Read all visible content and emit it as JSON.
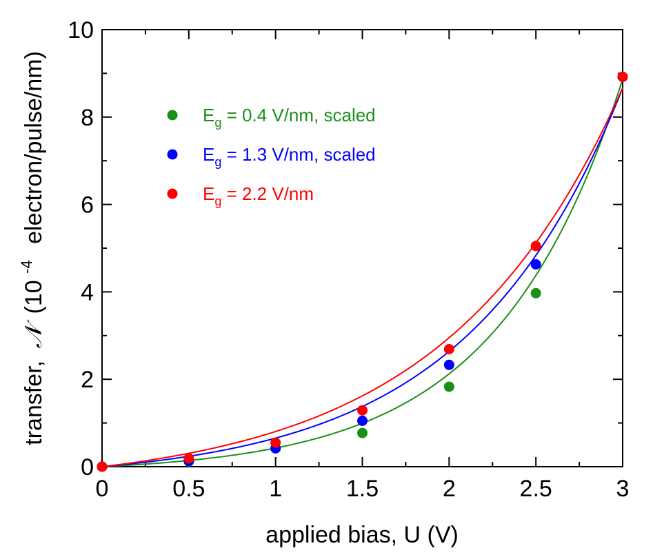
{
  "chart_data": {
    "type": "scatter",
    "xlabel": "applied bias, U (V)",
    "ylabel": {
      "prefix": "transfer,",
      "symbol": "𝒩",
      "base": "(10",
      "exponent": "-4",
      "suffix": "electron/pulse/nm)"
    },
    "xlim": [
      0,
      3
    ],
    "ylim": [
      0,
      10
    ],
    "x_ticks": [
      0,
      0.5,
      1,
      1.5,
      2,
      2.5,
      3
    ],
    "x_tick_labels": [
      "0",
      "0.5",
      "1",
      "1.5",
      "2",
      "2.5",
      "3"
    ],
    "y_ticks": [
      0,
      2,
      4,
      6,
      8,
      10
    ],
    "y_tick_labels": [
      "0",
      "2",
      "4",
      "6",
      "8",
      "10"
    ],
    "grid": false,
    "legend_position": "top-left",
    "series": [
      {
        "name": "Eg = 0.4 V/nm, scaled",
        "legend": {
          "main": "E",
          "sub": "g",
          "rest": " = 0.4 V/nm, scaled"
        },
        "color": "#1a8f1a",
        "x": [
          0,
          0.5,
          1,
          1.5,
          2,
          2.5,
          3
        ],
        "y": [
          0,
          0.12,
          0.42,
          0.77,
          1.83,
          3.97,
          8.92
        ],
        "fit": {
          "a": 0.1435,
          "b": 1.38,
          "c": -0.1435
        }
      },
      {
        "name": "Eg = 1.3 V/nm, scaled",
        "legend": {
          "main": "E",
          "sub": "g",
          "rest": " = 1.3 V/nm, scaled"
        },
        "color": "#0000ff",
        "x": [
          0,
          0.5,
          1,
          1.5,
          2,
          2.5,
          3
        ],
        "y": [
          0,
          0.13,
          0.42,
          1.05,
          2.33,
          4.63,
          8.92
        ],
        "fit": {
          "a": 0.3215,
          "b": 1.11,
          "c": -0.3215
        }
      },
      {
        "name": "Eg = 2.2 V/nm",
        "legend": {
          "main": "E",
          "sub": "g",
          "rest": " = 2.2 V/nm"
        },
        "color": "#ff0000",
        "x": [
          0,
          0.5,
          1,
          1.5,
          2,
          2.5,
          3
        ],
        "y": [
          0,
          0.19,
          0.55,
          1.29,
          2.69,
          5.05,
          8.92
        ],
        "fit": {
          "a": 0.4838,
          "b": 0.98,
          "c": -0.4838
        }
      }
    ]
  }
}
